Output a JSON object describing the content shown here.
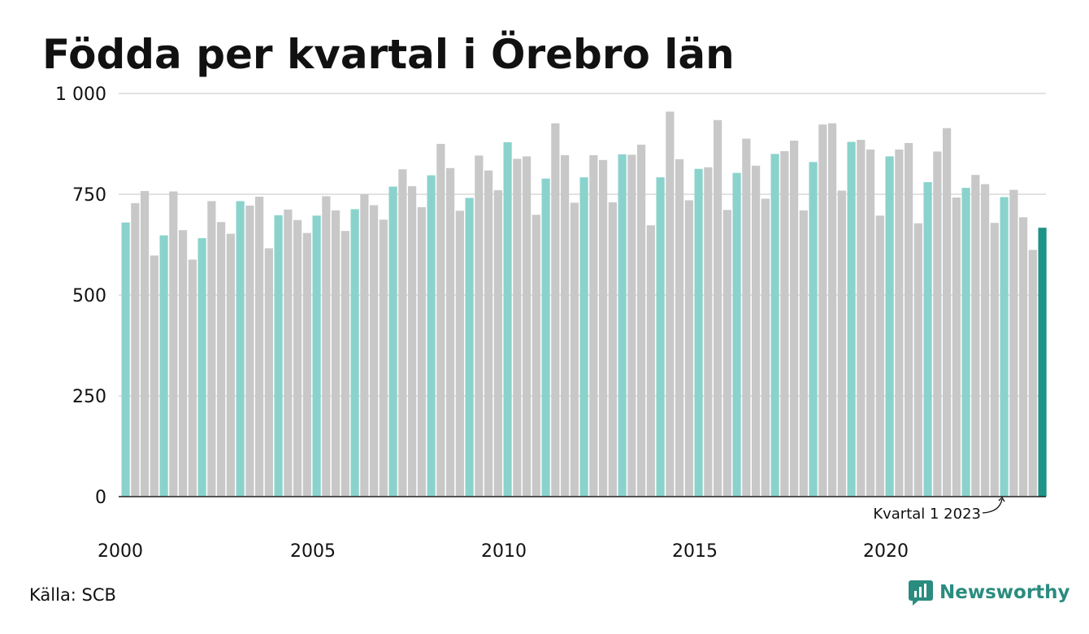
{
  "title": "Födda per kvartal i Örebro län",
  "source": "Källa: SCB",
  "brand": {
    "name": "Newsworthy",
    "icon": "newsworthy-logo-icon"
  },
  "colors": {
    "q1": "#8ad3cc",
    "other": "#c8c8c8",
    "latest": "#1f9385",
    "grid": "#e2e2e2",
    "axis": "#222222"
  },
  "chart_data": {
    "type": "bar",
    "title": "Födda per kvartal i Örebro län",
    "xlabel": "",
    "ylabel": "",
    "ylim": [
      0,
      1000
    ],
    "y_ticks": [
      0,
      250,
      500,
      750,
      1000
    ],
    "y_tick_labels": [
      "0",
      "250",
      "500",
      "750",
      "1 000"
    ],
    "x_tick_labels": [
      "2000",
      "2005",
      "2010",
      "2015",
      "2020"
    ],
    "grid": true,
    "start": "2000 Q1",
    "end": "2023 Q1",
    "highlight_rule": "Kvartal 1 highlighted",
    "values": [
      680,
      728,
      758,
      598,
      648,
      757,
      661,
      588,
      641,
      733,
      681,
      652,
      733,
      722,
      744,
      616,
      698,
      712,
      686,
      654,
      697,
      745,
      710,
      659,
      713,
      750,
      723,
      687,
      769,
      812,
      770,
      718,
      797,
      875,
      815,
      709,
      741,
      846,
      809,
      760,
      879,
      838,
      844,
      699,
      789,
      926,
      847,
      729,
      792,
      847,
      835,
      730,
      849,
      848,
      873,
      673,
      792,
      955,
      837,
      735,
      813,
      817,
      934,
      711,
      803,
      888,
      821,
      739,
      850,
      857,
      883,
      710,
      830,
      923,
      926,
      759,
      880,
      885,
      861,
      697,
      844,
      861,
      877,
      678,
      780,
      856,
      914,
      742,
      766,
      798,
      775,
      679,
      743,
      761,
      693,
      612,
      667
    ],
    "annotations": [
      {
        "text": "Kvartal 1 2023",
        "target_index": 96
      }
    ]
  }
}
